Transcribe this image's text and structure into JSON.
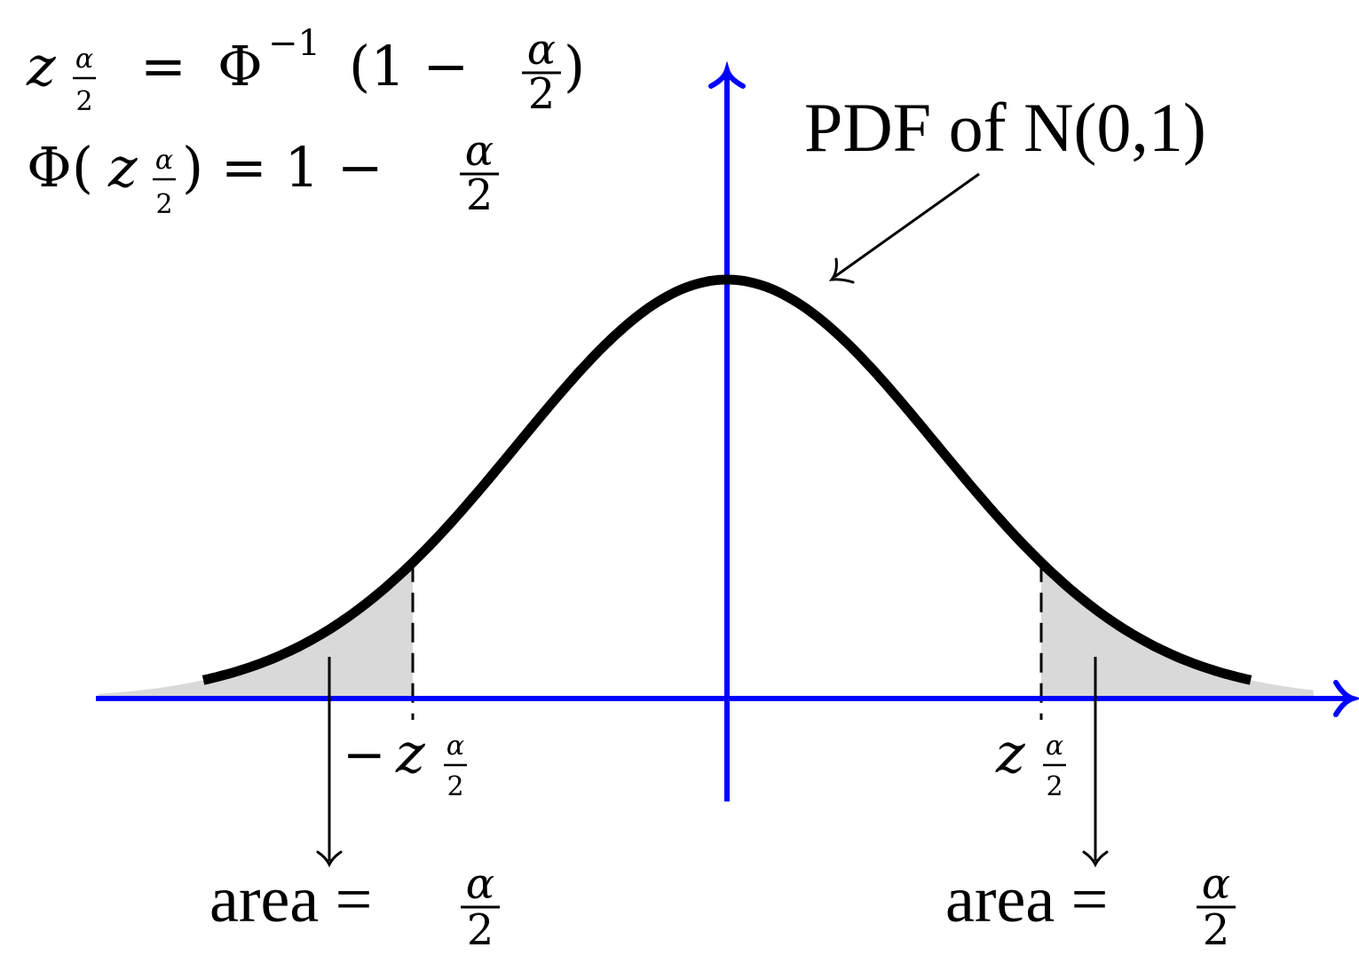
{
  "colors": {
    "axis": "#0000ff",
    "curve": "#000000",
    "shade": "#d9d9d9",
    "text": "#000000"
  },
  "formulas": {
    "line1": {
      "lhs_symbol": "z",
      "sub_num": "α",
      "sub_den": "2",
      "equals": "=",
      "phi": "Φ",
      "sup": "−1",
      "open": "(1 −",
      "frac_num": "α",
      "frac_den": "2",
      "close": ")"
    },
    "line2": {
      "phi_open": "Φ(",
      "z": "z",
      "sub_num": "α",
      "sub_den": "2",
      "close_eq": ") = 1 −",
      "frac_num": "α",
      "frac_den": "2"
    }
  },
  "curve_label": {
    "text": "PDF of N(0,1)"
  },
  "ticks": {
    "left": {
      "minus": "−",
      "z": "z",
      "sub_num": "α",
      "sub_den": "2"
    },
    "right": {
      "z": "z",
      "sub_num": "α",
      "sub_den": "2"
    }
  },
  "area_labels": {
    "left": {
      "word": "area =",
      "frac_num": "α",
      "frac_den": "2"
    },
    "right": {
      "word": "area =",
      "frac_num": "α",
      "frac_den": "2"
    }
  },
  "distribution": {
    "mean": 0,
    "sd": 1,
    "z_critical": 1.5
  }
}
